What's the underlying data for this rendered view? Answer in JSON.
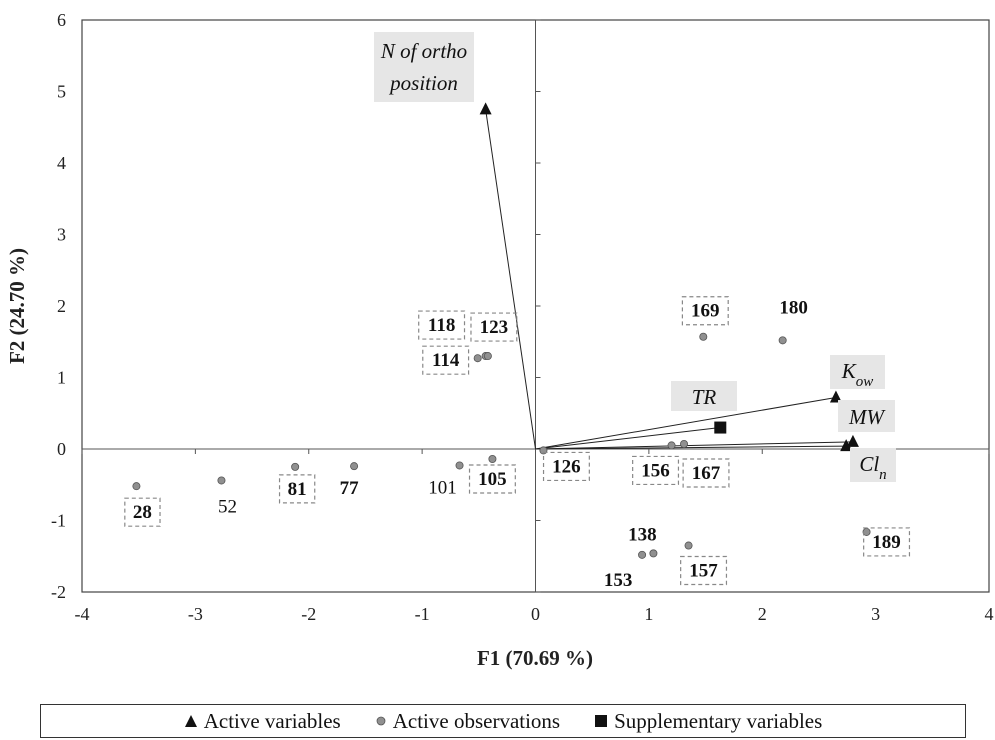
{
  "chart_data": {
    "type": "scatter",
    "xlabel": "F1 (70.69 %)",
    "ylabel": "F2 (24.70 %)",
    "xlim": [
      -4,
      4
    ],
    "ylim": [
      -2,
      6
    ],
    "xticks": [
      "-4",
      "-3",
      "-2",
      "-1",
      "0",
      "1",
      "2",
      "3",
      "4"
    ],
    "yticks": [
      "-2",
      "-1",
      "0",
      "1",
      "2",
      "3",
      "4",
      "5",
      "6"
    ],
    "grid": false,
    "legend_placement": "bottom",
    "active_variables": [
      {
        "label": "N of ortho position",
        "x": -0.44,
        "y": 4.75
      },
      {
        "label": "Kow",
        "x": 2.65,
        "y": 0.72
      },
      {
        "label": "MW",
        "x": 2.8,
        "y": 0.1
      },
      {
        "label": "Cln",
        "x": 2.74,
        "y": 0.04
      }
    ],
    "supplementary_variables": [
      {
        "label": "TR",
        "x": 1.63,
        "y": 0.3
      }
    ],
    "active_observations": [
      {
        "label": "28",
        "x": -3.52,
        "y": -0.52,
        "boxed": true,
        "bold": true
      },
      {
        "label": "52",
        "x": -2.77,
        "y": -0.44,
        "boxed": false,
        "bold": false
      },
      {
        "label": "81",
        "x": -2.12,
        "y": -0.25,
        "boxed": true,
        "bold": true
      },
      {
        "label": "77",
        "x": -1.6,
        "y": -0.24,
        "boxed": false,
        "bold": true
      },
      {
        "label": "101",
        "x": -0.67,
        "y": -0.23,
        "boxed": false,
        "bold": false
      },
      {
        "label": "105",
        "x": -0.38,
        "y": -0.14,
        "boxed": true,
        "bold": true
      },
      {
        "label": "114",
        "x": -0.51,
        "y": 1.27,
        "boxed": true,
        "bold": true
      },
      {
        "label": "118",
        "x": -0.44,
        "y": 1.3,
        "boxed": true,
        "bold": true
      },
      {
        "label": "123",
        "x": -0.42,
        "y": 1.3,
        "boxed": true,
        "bold": true
      },
      {
        "label": "126",
        "x": 0.07,
        "y": -0.02,
        "boxed": true,
        "bold": true
      },
      {
        "label": "169",
        "x": 1.48,
        "y": 1.57,
        "boxed": true,
        "bold": true
      },
      {
        "label": "180",
        "x": 2.18,
        "y": 1.52,
        "boxed": false,
        "bold": true
      },
      {
        "label": "156",
        "x": 1.2,
        "y": 0.05,
        "boxed": true,
        "bold": true
      },
      {
        "label": "167",
        "x": 1.31,
        "y": 0.07,
        "boxed": true,
        "bold": true
      },
      {
        "label": "138",
        "x": 1.04,
        "y": -1.46,
        "boxed": false,
        "bold": true
      },
      {
        "label": "153",
        "x": 0.94,
        "y": -1.48,
        "boxed": false,
        "bold": true
      },
      {
        "label": "157",
        "x": 1.35,
        "y": -1.35,
        "boxed": true,
        "bold": true
      },
      {
        "label": "189",
        "x": 2.92,
        "y": -1.16,
        "boxed": true,
        "bold": true
      }
    ]
  },
  "legend": {
    "active_variables": "Active variables",
    "active_observations": "Active observations",
    "supplementary_variables": "Supplementary variables"
  },
  "colors": {
    "observation_fill": "#909090",
    "variable_marker": "#111111",
    "label_box_fill": "#e6e6e6",
    "box_border": "#888888"
  }
}
